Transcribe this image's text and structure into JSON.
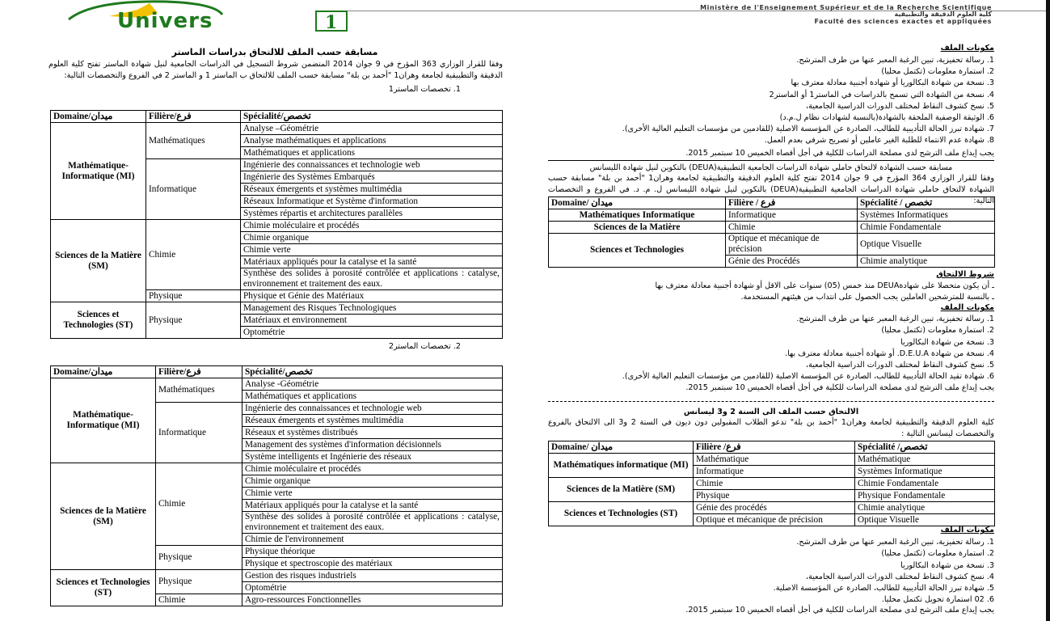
{
  "header": {
    "logo_text": "Université Oran 1 Ahmed Ben Bella",
    "logo_number": "1",
    "ministry_fr": "Ministère de l'Enseignement Supérieur et de la Recherche Scientifique",
    "faculty_ar": "كلية العلوم الدقيقة والتطبيقية",
    "faculty_fr": "Faculté des sciences exactes et appliquées",
    "brand_green": "#1e7a1e",
    "brand_yellow": "#f2c200"
  },
  "left": {
    "title": "مسابقة حسب الملف للالتحاق بدراسات الماستر",
    "intro": "وفقا للقرار الوزاري 363 المؤرخ في 9 جوان 2014 المتضمن شروط التسجيل في الدراسات الجامعية لنيل شهادة الماستر تفتح كلية العلوم الدقيقة والتطبيقية لجامعة وهران1 \"أحمد بن بلة\" مسابقة حسب الملف للالتحاق ب الماستر 1 و الماستر 2 في الفروع والتخصصات التالية:",
    "section1": "1.     تخصصات الماستر1",
    "section2": "2.     تخصصات الماستر2",
    "table_master1": {
      "headers": [
        "Domaine/ميدان",
        "Filière/فرع",
        "Spécialité/تخصص"
      ],
      "groups": [
        {
          "domaine": "Mathématique-Informatique (MI)",
          "filieres": [
            {
              "name": "Mathématiques",
              "specialites": [
                "Analyse –Géométrie",
                "Analyse mathématiques et applications",
                "Mathématiques et applications"
              ]
            },
            {
              "name": "Informatique",
              "specialites": [
                "Ingénierie des connaissances et technologie web",
                "Ingénierie des Systèmes Embarqués",
                "Réseaux émergents et systèmes multimédia",
                "Réseaux Informatique et Système d'information",
                "Systèmes répartis et architectures parallèles"
              ]
            }
          ]
        },
        {
          "domaine": "Sciences de la Matière (SM)",
          "filieres": [
            {
              "name": "Chimie",
              "specialites": [
                "Chimie moléculaire et procédés",
                "Chimie organique",
                "Chimie verte",
                "Matériaux appliqués pour la catalyse et la santé",
                "Synthèse des solides à porosité contrôlée et applications : catalyse, environnement et traitement des eaux."
              ]
            },
            {
              "name": "Physique",
              "specialites": [
                "Physique et Génie des Matériaux"
              ]
            }
          ]
        },
        {
          "domaine": "Sciences et Technologies (ST)",
          "filieres": [
            {
              "name": "Physique",
              "specialites": [
                "Management des Risques Technologiques",
                "Matériaux et environnement",
                "Optométrie"
              ]
            }
          ]
        }
      ]
    },
    "table_master2": {
      "headers": [
        "Domaine/ميدان",
        "Filière/فرع",
        "Spécialité/تخصص"
      ],
      "groups": [
        {
          "domaine": "Mathématique-Informatique (MI)",
          "filieres": [
            {
              "name": "Mathématiques",
              "specialites": [
                "Analyse -Géométrie",
                "Mathématiques et applications"
              ]
            },
            {
              "name": "Informatique",
              "specialites": [
                "Ingénierie des connaissances et technologie web",
                "Réseaux émergents et systèmes multimédia",
                "Réseaux et systèmes distribués",
                "Management des systèmes d'information décisionnels",
                "Système intelligents et Ingénierie des réseaux"
              ]
            }
          ]
        },
        {
          "domaine": "Sciences de la Matière (SM)",
          "filieres": [
            {
              "name": "Chimie",
              "specialites": [
                "Chimie moléculaire et procédés",
                "Chimie organique",
                "Chimie verte",
                "Matériaux appliqués pour la catalyse et la santé",
                "Synthèse des solides à porosité contrôlée et applications : catalyse, environnement et traitement des eaux.",
                "Chimie de l'environnement"
              ]
            },
            {
              "name": "Physique",
              "specialites": [
                "Physique théorique",
                "Physique et spectroscopie des matériaux"
              ]
            }
          ]
        },
        {
          "domaine": "Sciences et Technologies (ST)",
          "filieres": [
            {
              "name": "Physique",
              "specialites": [
                "Gestion des risques industriels",
                "Optométrie"
              ]
            },
            {
              "name": "Chimie",
              "specialites": [
                "Agro-ressources Fonctionnelles"
              ]
            }
          ]
        }
      ]
    }
  },
  "right": {
    "dossier1": {
      "title": "مكونات الملف",
      "items": [
        "1. رسالة تحفيزية، تبين الرغبة المعبر عنها من طرف المترشح.",
        "2. استمارة معلومات (تكتمل محليا)",
        "3. نسخة من شهادة البكالوريا أو شهادة أجنبية معادلة معترف بها",
        "4. نسخة من الشهادة التي تسمح بالدراسات في الماستر1 أو الماستر2",
        "5. نسخ كشوف النقاط لمختلف الدورات الدراسية الجامعية،",
        "6. الوثيقة الوصفية الملحقة بالشهادة(بالنسبة لشهادات نظام ل.م.د)",
        "7. شهادة تبرز الحالة التأديبية للطالب، الصادرة عن المؤسسة الاصلية (للقادمين من مؤسسات التعليم العالية الأخرى).",
        "8. شهادة عدم الانتماء للطلبة الغير عاملين أو تصريح شرفي بعدم العمل."
      ],
      "deadline": "يجب إيداع ملف الترشح لدى مصلحة الدراسات للكلية في أجل أقصاه الخميس 10 سبتمبر 2015."
    },
    "deua": {
      "title": "مسابقة حسب الشهادة لالتحاق حاملي شهادة الدراسات الجامعية التطبيقية(DEUA) بالتكوين لنيل شهادة الليسانس",
      "intro": "وفقا للقرار الوزاري 364 المؤرخ في 9 جوان 2014 تفتح كلية العلوم الدقيقة والتطبيقية لجامعة وهران1 \"أحمد بن بلة\" مسابقة حسب الشهادة لالتحاق حاملي شهادة الدراسات الجامعية التطبيقية(DEUA) بالتكوين لنيل شهادة الليسانس ل. م. د. في الفروع و التخصصات التالية:",
      "table": {
        "headers": [
          "Domaine/ ميدان",
          "Filière / فرع",
          "Spécialité / تخصص"
        ],
        "groups": [
          {
            "domaine": "Mathématiques Informatique",
            "filieres": [
              {
                "name": "Informatique",
                "specialites": [
                  "Systèmes Informatiques"
                ]
              }
            ]
          },
          {
            "domaine": "Sciences de la Matière",
            "filieres": [
              {
                "name": "Chimie",
                "specialites": [
                  "Chimie Fondamentale"
                ]
              }
            ]
          },
          {
            "domaine": "Sciences et Technologies",
            "filieres": [
              {
                "name": "Optique et mécanique de précision",
                "specialites": [
                  "Optique Visuelle"
                ]
              },
              {
                "name": "Génie des Procédés",
                "specialites": [
                  "Chimie analytique"
                ]
              }
            ]
          }
        ]
      },
      "conditions_title": "شروط الالتحاق",
      "conditions": [
        "ـ أن يكون متحصلا على شهادةDEUA منذ خمس (05) سنوات على الاقل أو شهادة أجنبية معادلة معترف بها",
        "ـ بالنسبة للمترشحين العاملين يجب الحصول على انتداب من هيئتهم المستخدمة."
      ],
      "dossier_title": "مكونات الملف",
      "dossier_items": [
        "1. رسالة تحفيزية، تبين الرغبة المعبر عنها من طرف المترشح.",
        "2. استمارة معلومات (تكتمل محليا)",
        "3. نسخة من شهادة البكالوريا",
        "4. نسخة من شهادة D.E.U.A. أو شهادة أجنبية معادلة معترف بها.",
        "5. نسخ كشوف النقاط لمختلف الدورات الدراسية الجامعية،",
        "6. شهادة تقيد الحالة التأديبية للطالب، الصادرة عن المؤسسة الاصلية (للقادمين من مؤسسات التعليم العالية الأخرى)."
      ],
      "deadline": "يجب إيداع ملف الترشح لدى مصلحة الدراسات للكلية في أجل أقصاه الخميس 10 سبتمبر 2015."
    },
    "licence23": {
      "title": "الالتحاق حسب الملف الى السنة 2 و3 ليسانس",
      "intro": "كلية العلوم الدقيقة والتطبيقية لجامعة وهران1 \"أحمد بن بلة\" تدعو الطلاب المقبولين دون ديون في السنة 2 و3 الى الالتحاق بالفروع والتخصصات ليسانس التالية :",
      "table": {
        "headers": [
          "Domaine/ ميدان",
          "Filière /فرع",
          "Spécialité /تخصص"
        ],
        "groups": [
          {
            "domaine": "Mathématiques informatique (MI)",
            "filieres": [
              {
                "name": "Mathématique",
                "specialites": [
                  "Mathématique"
                ]
              },
              {
                "name": "Informatique",
                "specialites": [
                  "Systèmes Informatique"
                ]
              }
            ]
          },
          {
            "domaine": "Sciences de la Matière (SM)",
            "filieres": [
              {
                "name": "Chimie",
                "specialites": [
                  "Chimie Fondamentale"
                ]
              },
              {
                "name": "Physique",
                "specialites": [
                  "Physique Fondamentale"
                ]
              }
            ]
          },
          {
            "domaine": "Sciences et Technologies (ST)",
            "filieres": [
              {
                "name": "Génie des procédés",
                "specialites": [
                  "Chimie analytique"
                ]
              },
              {
                "name": "Optique et mécanique de précision",
                "specialites": [
                  "Optique Visuelle"
                ]
              }
            ]
          }
        ]
      },
      "dossier_title": "مكونات الملف",
      "dossier_items": [
        "1. رسالة تحفيزية، تبين الرغبة المعبر عنها من طرف المترشح.",
        "2. استمارة معلومات (تكتمل محليا)",
        "3. نسخة من شهادة البكالوريا",
        "4. نسخ كشوف النقاط لمختلف الدورات الدراسية الجامعية،",
        "5. شهادة تبرز الحالة التأديبية للطالب، الصادرة عن المؤسسة الاصلية.",
        "6. 02 استمارة تحويل تكتمل محليا."
      ],
      "deadline": "يجب إيداع ملف الترشح لدى مصلحة الدراسات للكلية في أجل أقصاه الخميس 10 سبتمبر 2015."
    }
  }
}
